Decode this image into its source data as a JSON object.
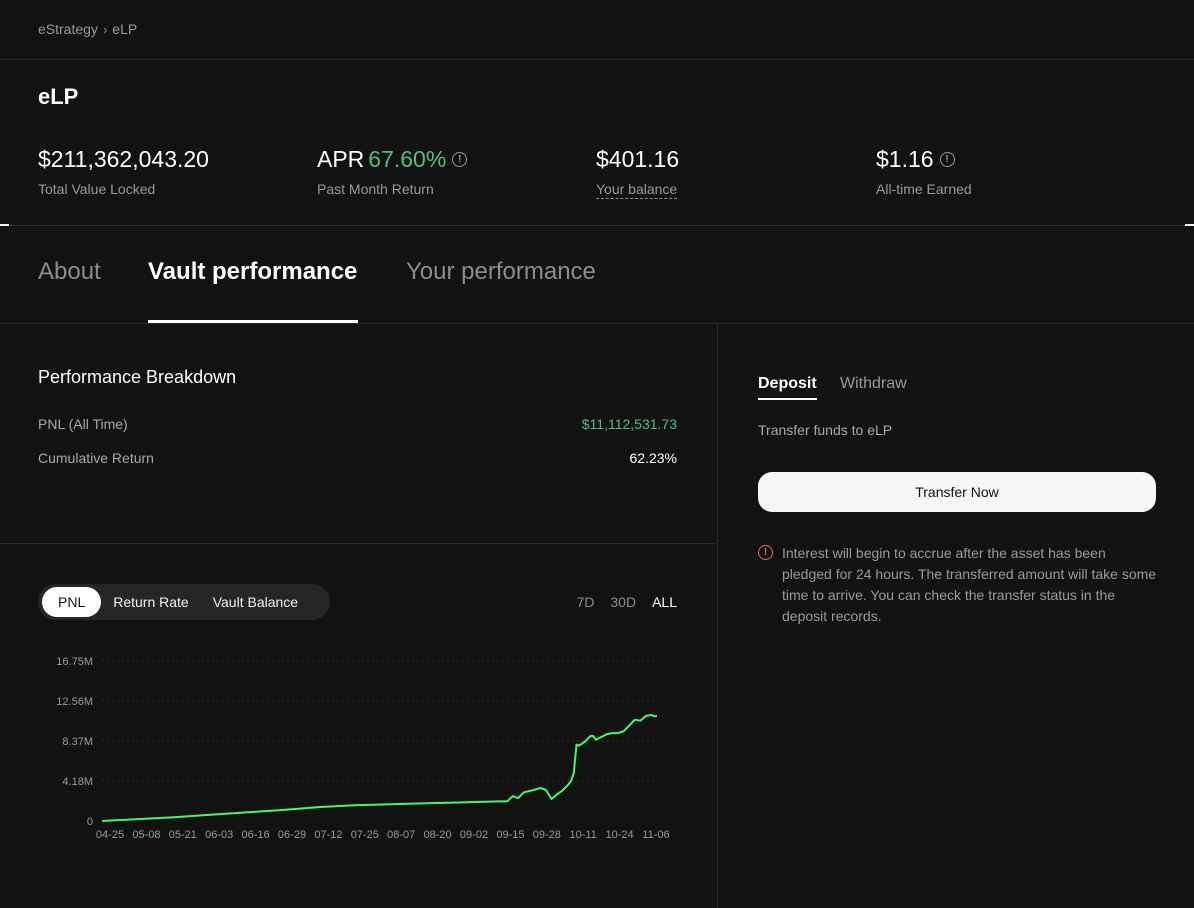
{
  "breadcrumb": {
    "parent": "eStrategy",
    "current": "eLP"
  },
  "vault": {
    "title": "eLP"
  },
  "stats": {
    "tvl": {
      "value": "$211,362,043.20",
      "label": "Total Value Locked"
    },
    "apr": {
      "prefix": "APR",
      "value": "67.60%",
      "label": "Past Month Return"
    },
    "balance": {
      "value": "$401.16",
      "label": "Your balance"
    },
    "earned": {
      "value": "$1.16",
      "label": "All-time Earned"
    }
  },
  "tabs": {
    "about": "About",
    "vault_performance": "Vault performance",
    "your_performance": "Your performance"
  },
  "performance": {
    "title": "Performance Breakdown",
    "pnl_label": "PNL (All Time)",
    "pnl_value": "$11,112,531.73",
    "cum_label": "Cumulative Return",
    "cum_value": "62.23%"
  },
  "chart_controls": {
    "metrics": [
      "PNL",
      "Return Rate",
      "Vault Balance"
    ],
    "active_metric": "PNL",
    "ranges": [
      "7D",
      "30D",
      "ALL"
    ],
    "active_range": "ALL"
  },
  "chart_data": {
    "type": "line",
    "title": "",
    "xlabel": "",
    "ylabel": "",
    "x_ticks": [
      "04-25",
      "05-08",
      "05-21",
      "06-03",
      "06-16",
      "06-29",
      "07-12",
      "07-25",
      "08-07",
      "08-20",
      "09-02",
      "09-15",
      "09-28",
      "10-11",
      "10-24",
      "11-06"
    ],
    "y_ticks": [
      "0",
      "4.18M",
      "8.37M",
      "12.56M",
      "16.75M"
    ],
    "ylim": [
      0,
      16750000
    ],
    "grid": true,
    "color": "#3dfa6e",
    "series": [
      {
        "x": [
          0,
          13,
          26,
          39,
          52,
          65,
          78,
          91,
          104,
          117,
          130,
          143,
          146,
          148,
          150,
          152,
          155,
          158,
          160,
          162,
          164,
          166,
          167,
          168,
          169,
          170,
          171,
          172,
          174,
          176,
          177,
          178,
          180,
          182,
          184,
          186,
          188,
          190,
          192,
          194,
          196,
          198,
          199,
          200
        ],
        "y": [
          0,
          200000,
          400000,
          650000,
          900000,
          1150000,
          1450000,
          1650000,
          1750000,
          1850000,
          1950000,
          2050000,
          2050000,
          2600000,
          2400000,
          3000000,
          3200000,
          3450000,
          3250000,
          2300000,
          2800000,
          3200000,
          3500000,
          3800000,
          4200000,
          5000000,
          8000000,
          7900000,
          8300000,
          8900000,
          8900000,
          8500000,
          8800000,
          9100000,
          9200000,
          9200000,
          9400000,
          10000000,
          10600000,
          10500000,
          11000000,
          11100000,
          10950000,
          11000000
        ]
      }
    ]
  },
  "deposit_panel": {
    "deposit_tab": "Deposit",
    "withdraw_tab": "Withdraw",
    "description": "Transfer funds to eLP",
    "button": "Transfer Now",
    "notice": "Interest will begin to accrue after the asset has been pledged for 24 hours. The transferred amount will take some time to arrive. You can check the transfer status in the deposit records.",
    "notice_color": "#e0703a"
  }
}
